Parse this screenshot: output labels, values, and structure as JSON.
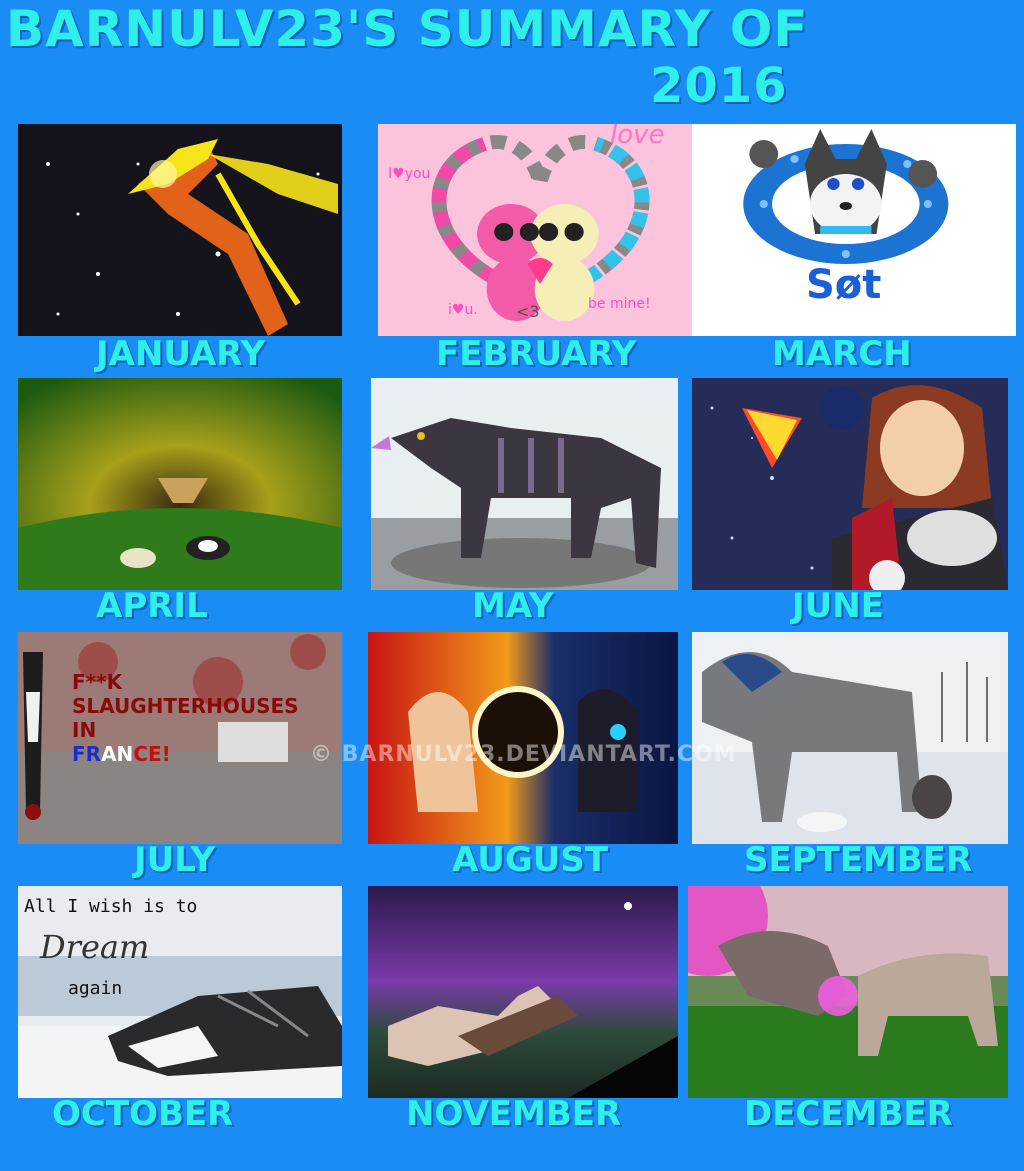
{
  "header": {
    "title_line1": "BARNULV23'S SUMMARY OF",
    "title_line2": "2016"
  },
  "months": [
    {
      "label": "JANUARY"
    },
    {
      "label": "FEBRUARY"
    },
    {
      "label": "MARCH"
    },
    {
      "label": "APRIL"
    },
    {
      "label": "MAY"
    },
    {
      "label": "JUNE"
    },
    {
      "label": "JULY"
    },
    {
      "label": "AUGUST"
    },
    {
      "label": "SEPTEMBER"
    },
    {
      "label": "OCTOBER"
    },
    {
      "label": "NOVEMBER"
    },
    {
      "label": "DECEMBER"
    }
  ],
  "artwork_text": {
    "feb_love": "love",
    "feb_iyou": "I♥you",
    "feb_iu": "i♥u.",
    "feb_3": "<3",
    "feb_bemine": "be mine!",
    "march_name": "Søt",
    "july_line1": "F**K SLAUGHTERHOUSES",
    "july_line2": "IN",
    "july_line3_fr": "FR",
    "july_line3_an": "AN",
    "july_line3_ce": "CE!",
    "oct_line1": "All I wish is to",
    "oct_line2": "Dream",
    "oct_line3": "again"
  },
  "watermark": "© BARNULV23.DEVIANTART.COM",
  "colors": {
    "background": "#1a8cf5",
    "title": "#2ff0e8",
    "label": "#2ff0e8"
  }
}
